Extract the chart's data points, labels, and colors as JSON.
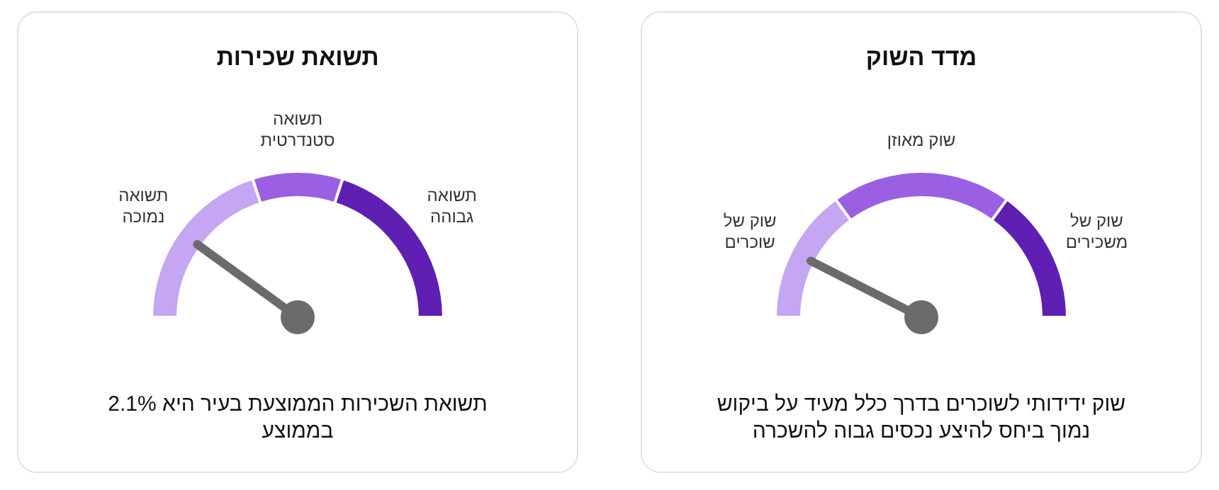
{
  "chart_data": [
    {
      "type": "donut",
      "title": "מדד השוק",
      "categories": [
        "שוק של שוכרים",
        "שוק מאוזן",
        "שוק של משכירים"
      ],
      "values": [
        30,
        40,
        30
      ],
      "colors": [
        "#c4a6f2",
        "#9b5fe3",
        "#5f1fb3"
      ],
      "needle": "שוק של שוכרים",
      "annotations": [
        "שוק ידידותי לשוכרים בדרך כלל מעיד על ביקוש נמוך ביחס להיצע נכסים גבוה להשכרה"
      ]
    },
    {
      "type": "donut",
      "title": "תשואת שכירות",
      "categories": [
        "תשואה נמוכה",
        "תשואה סטנדרטית",
        "תשואה גבוהה"
      ],
      "values": [
        40,
        20,
        40
      ],
      "colors": [
        "#c4a6f2",
        "#9b5fe3",
        "#5f1fb3"
      ],
      "needle": "תשואה נמוכה",
      "annotations": [
        "תשואת השכירות הממוצעת בעיר היא 2.1% בממוצע"
      ]
    }
  ]
}
